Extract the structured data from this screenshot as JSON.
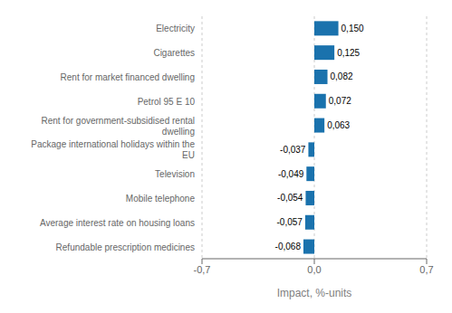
{
  "chart_data": {
    "type": "bar",
    "orientation": "horizontal",
    "categories": [
      "Refundable prescription medicines",
      "Average interest rate on housing loans",
      "Mobile telephone",
      "Television",
      "Package international holidays within the\nEU",
      "Rent for government-subsidised rental\ndwelling",
      "Petrol 95 E 10",
      "Rent for market financed dwelling",
      "Cigarettes",
      "Electricity"
    ],
    "values": [
      -0.068,
      -0.057,
      -0.054,
      -0.049,
      -0.037,
      0.063,
      0.072,
      0.082,
      0.125,
      0.15
    ],
    "value_labels": [
      "-0,068",
      "-0,057",
      "-0,054",
      "-0,049",
      "-0,037",
      "0,063",
      "0,072",
      "0,082",
      "0,125",
      "0,150"
    ],
    "data_labels": true,
    "color": "#1a72ad",
    "xlabel": "Impact, %-units",
    "xlim": [
      -0.7,
      0.7
    ],
    "xticks": [
      {
        "value": -0.7,
        "label": "-0,7"
      },
      {
        "value": 0,
        "label": "0,0"
      },
      {
        "value": 0.7,
        "label": "0,7"
      }
    ],
    "grid": true
  }
}
